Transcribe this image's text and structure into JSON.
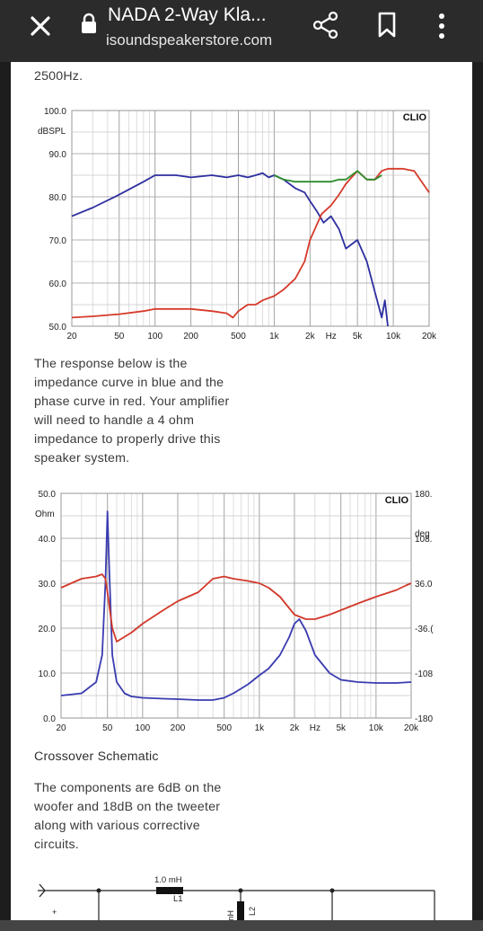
{
  "browser": {
    "title": "NADA 2-Way Kla...",
    "url": "isoundspeakerstore.com",
    "icons": {
      "close": "close-icon",
      "lock": "lock-icon",
      "share": "share-icon",
      "bookmark": "bookmark-icon",
      "more": "more-vert-icon"
    }
  },
  "article": {
    "cut_text": "2500Hz.",
    "impedance_intro": [
      "The response below is the",
      "impedance curve in blue and the",
      "phase curve in red. Your amplifier",
      "will need to handle a 4 ohm",
      "impedance to properly drive this",
      "speaker system."
    ],
    "schematic_heading": "Crossover Schematic",
    "schematic_desc": [
      "The components are 6dB on the",
      "woofer and 18dB on the tweeter",
      "along with various corrective",
      "circuits."
    ],
    "schematic_labels": {
      "l1_value": "1.0 mH",
      "l1_name": "L1",
      "l2_value": "mH",
      "l2_name": "L2",
      "plus": "+"
    }
  },
  "chart_data": [
    {
      "type": "line",
      "brand": "CLIO",
      "ylabel": "dBSPL",
      "x_scale": "log",
      "x_ticks": [
        "20",
        "50",
        "100",
        "200",
        "500",
        "1k",
        "2k",
        "Hz",
        "5k",
        "10k",
        "20k"
      ],
      "y_ticks": [
        "100.0",
        "90.0",
        "80.0",
        "70.0",
        "60.0",
        "50.0"
      ],
      "ylim": [
        50,
        100
      ],
      "xlim": [
        20,
        20000
      ],
      "colors": {
        "woofer": "#2d2fa0",
        "tweeter": "#d63a2a",
        "sum": "#2c8c2c"
      },
      "series": [
        {
          "key": "woofer",
          "x": [
            20,
            30,
            50,
            80,
            100,
            150,
            200,
            300,
            400,
            500,
            600,
            700,
            800,
            900,
            1000,
            1200,
            1500,
            1800,
            2000,
            2300,
            2600,
            3000,
            3500,
            4000,
            5000,
            6000,
            7000,
            8000,
            8500,
            9000
          ],
          "y": [
            75.5,
            77.5,
            80.5,
            83.5,
            85,
            85,
            84.5,
            85,
            84.5,
            85,
            84.5,
            85,
            85.5,
            84.5,
            85,
            84,
            82,
            81,
            79,
            76.5,
            74,
            75.5,
            72.5,
            68,
            70,
            65,
            58,
            52,
            56,
            50
          ]
        },
        {
          "key": "tweeter",
          "x": [
            20,
            30,
            50,
            80,
            100,
            150,
            200,
            300,
            400,
            450,
            500,
            600,
            700,
            800,
            1000,
            1200,
            1500,
            1800,
            2000,
            2500,
            3000,
            3500,
            4000,
            5000,
            6000,
            7000,
            8000,
            9000,
            10000,
            12000,
            15000,
            20000
          ],
          "y": [
            52,
            52.3,
            52.8,
            53.5,
            54,
            54,
            54,
            53.5,
            53,
            52,
            53.5,
            55,
            55,
            56,
            57,
            58.5,
            61,
            65,
            70,
            76,
            78,
            80.5,
            83,
            86,
            84,
            84,
            86,
            86.5,
            86.5,
            86.5,
            86,
            81
          ]
        },
        {
          "key": "sum",
          "x": [
            1000,
            1200,
            1500,
            1800,
            2000,
            2500,
            3000,
            3500,
            4000,
            5000,
            6000,
            7000,
            8000
          ],
          "y": [
            85,
            84,
            83.5,
            83.5,
            83.5,
            83.5,
            83.5,
            84,
            84,
            86,
            84,
            84,
            85
          ]
        }
      ]
    },
    {
      "type": "line",
      "brand": "CLIO",
      "ylabel": "Ohm",
      "y2label": "deg",
      "x_scale": "log",
      "x_ticks": [
        "20",
        "50",
        "100",
        "200",
        "500",
        "1k",
        "2k",
        "Hz",
        "5k",
        "10k",
        "20k"
      ],
      "y_ticks": [
        "50.0",
        "40.0",
        "30.0",
        "20.0",
        "10.0",
        "0.0"
      ],
      "y2_ticks": [
        "180.",
        "108.",
        "36.0",
        "-36.(",
        "-108",
        "-180"
      ],
      "ylim": [
        0,
        50
      ],
      "y2lim": [
        -180,
        180
      ],
      "xlim": [
        20,
        20000
      ],
      "colors": {
        "impedance": "#3a3cb0",
        "phase": "#d2382a"
      },
      "series": [
        {
          "key": "impedance",
          "x": [
            20,
            30,
            40,
            45,
            48,
            50,
            52,
            55,
            60,
            70,
            80,
            100,
            150,
            200,
            300,
            400,
            500,
            600,
            800,
            1000,
            1200,
            1500,
            1800,
            2000,
            2200,
            2500,
            3000,
            4000,
            5000,
            7000,
            10000,
            15000,
            20000
          ],
          "y": [
            5,
            5.5,
            8,
            14,
            30,
            46,
            32,
            14,
            8,
            5.5,
            4.8,
            4.5,
            4.3,
            4.2,
            4,
            4,
            4.5,
            5.5,
            7.5,
            9.5,
            11,
            14,
            18,
            21,
            22,
            19.5,
            14,
            10,
            8.5,
            8,
            7.8,
            7.8,
            8
          ]
        },
        {
          "key": "phase",
          "x": [
            20,
            30,
            40,
            45,
            48,
            50,
            55,
            60,
            80,
            100,
            150,
            200,
            300,
            400,
            500,
            600,
            800,
            1000,
            1200,
            1500,
            2000,
            2500,
            3000,
            4000,
            5000,
            7000,
            10000,
            15000,
            18000,
            20000
          ],
          "y": [
            29,
            31,
            31.5,
            32,
            31,
            28,
            20,
            17,
            19,
            21,
            24,
            26,
            28,
            31,
            31.5,
            31,
            30.5,
            30,
            29,
            27,
            23,
            22,
            22,
            23,
            24,
            25.5,
            27,
            28.5,
            29.5,
            30
          ]
        }
      ]
    }
  ]
}
